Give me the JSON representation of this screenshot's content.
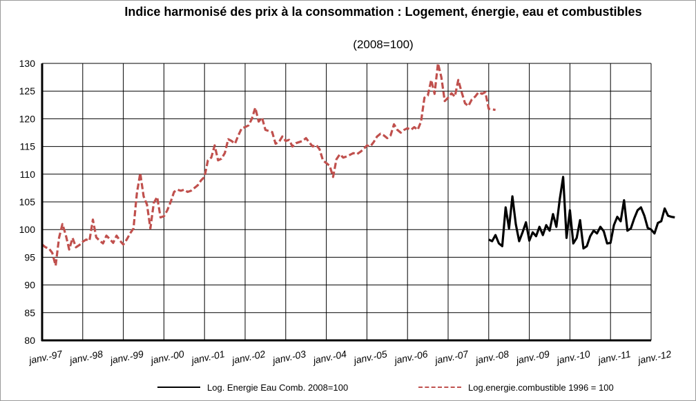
{
  "chart_data": {
    "type": "line",
    "title": "Indice harmonisé des prix à la consommation : Logement, énergie, eau  et combustibles",
    "subtitle": "(2008=100)",
    "xlabel": "",
    "ylabel": "",
    "ylim": [
      80,
      130
    ],
    "yticks": [
      "80",
      "85",
      "90",
      "95",
      "100",
      "105",
      "110",
      "115",
      "120",
      "125",
      "130"
    ],
    "xlim": [
      "1997-01",
      "2012-01"
    ],
    "xticks": [
      "janv.-97",
      "janv.-98",
      "janv.-99",
      "janv.-00",
      "janv.-01",
      "janv.-02",
      "janv.-03",
      "janv.-04",
      "janv.-05",
      "janv.-06",
      "janv.-07",
      "janv.-08",
      "janv.-09",
      "janv.-10",
      "janv.-11",
      "janv.-12"
    ],
    "grid": true,
    "legend_position": "bottom",
    "series": [
      {
        "name": "Log. Energie Eau Comb. 2008=100",
        "color": "#000000",
        "style": "solid",
        "points": [
          [
            "2008-01",
            98.2
          ],
          [
            "2008-02",
            97.9
          ],
          [
            "2008-03",
            99.0
          ],
          [
            "2008-04",
            97.5
          ],
          [
            "2008-05",
            97.0
          ],
          [
            "2008-06",
            104.0
          ],
          [
            "2008-07",
            100.2
          ],
          [
            "2008-08",
            106.0
          ],
          [
            "2008-09",
            101.0
          ],
          [
            "2008-10",
            97.9
          ],
          [
            "2008-11",
            99.5
          ],
          [
            "2008-12",
            101.3
          ],
          [
            "2009-01",
            98.0
          ],
          [
            "2009-02",
            99.5
          ],
          [
            "2009-03",
            98.8
          ],
          [
            "2009-04",
            100.5
          ],
          [
            "2009-05",
            99.0
          ],
          [
            "2009-06",
            100.8
          ],
          [
            "2009-07",
            99.8
          ],
          [
            "2009-08",
            102.8
          ],
          [
            "2009-09",
            100.5
          ],
          [
            "2009-10",
            105.5
          ],
          [
            "2009-11",
            109.5
          ],
          [
            "2009-12",
            98.5
          ],
          [
            "2010-01",
            103.5
          ],
          [
            "2010-02",
            97.5
          ],
          [
            "2010-03",
            98.5
          ],
          [
            "2010-04",
            101.7
          ],
          [
            "2010-05",
            96.6
          ],
          [
            "2010-06",
            97.0
          ],
          [
            "2010-07",
            98.8
          ],
          [
            "2010-08",
            99.8
          ],
          [
            "2010-09",
            99.3
          ],
          [
            "2010-10",
            100.5
          ],
          [
            "2010-11",
            99.7
          ],
          [
            "2010-12",
            97.5
          ],
          [
            "2011-01",
            97.6
          ],
          [
            "2011-02",
            100.8
          ],
          [
            "2011-03",
            102.3
          ],
          [
            "2011-04",
            101.5
          ],
          [
            "2011-05",
            105.3
          ],
          [
            "2011-06",
            99.8
          ],
          [
            "2011-07",
            100.2
          ],
          [
            "2011-08",
            102.0
          ],
          [
            "2011-09",
            103.5
          ],
          [
            "2011-10",
            104.0
          ],
          [
            "2011-11",
            102.5
          ],
          [
            "2011-12",
            100.3
          ],
          [
            "2012-01",
            100.0
          ],
          [
            "2012-02",
            99.3
          ],
          [
            "2012-03",
            101.2
          ],
          [
            "2012-04",
            101.5
          ],
          [
            "2012-05",
            103.8
          ],
          [
            "2012-06",
            102.5
          ],
          [
            "2012-07",
            102.3
          ],
          [
            "2012-08",
            102.2
          ]
        ]
      },
      {
        "name": "Log.energie.combustible 1996 = 100",
        "color": "#c0504d",
        "style": "dashed",
        "points": [
          [
            "1997-01",
            97.3
          ],
          [
            "1997-02",
            96.8
          ],
          [
            "1997-03",
            96.6
          ],
          [
            "1997-04",
            95.8
          ],
          [
            "1997-05",
            93.5
          ],
          [
            "1997-06",
            98.5
          ],
          [
            "1997-07",
            101.0
          ],
          [
            "1997-08",
            99.0
          ],
          [
            "1997-09",
            96.4
          ],
          [
            "1997-10",
            98.5
          ],
          [
            "1997-11",
            96.8
          ],
          [
            "1997-12",
            97.2
          ],
          [
            "1998-01",
            97.8
          ],
          [
            "1998-02",
            98.2
          ],
          [
            "1998-03",
            98.0
          ],
          [
            "1998-04",
            101.8
          ],
          [
            "1998-05",
            98.6
          ],
          [
            "1998-06",
            98.0
          ],
          [
            "1998-07",
            97.5
          ],
          [
            "1998-08",
            98.9
          ],
          [
            "1998-09",
            98.3
          ],
          [
            "1998-10",
            97.6
          ],
          [
            "1998-11",
            98.9
          ],
          [
            "1998-12",
            98.0
          ],
          [
            "1999-01",
            97.3
          ],
          [
            "1999-02",
            98.2
          ],
          [
            "1999-03",
            99.3
          ],
          [
            "1999-04",
            100.2
          ],
          [
            "1999-05",
            106.5
          ],
          [
            "1999-06",
            110.2
          ],
          [
            "1999-07",
            106.0
          ],
          [
            "1999-08",
            104.5
          ],
          [
            "1999-09",
            100.2
          ],
          [
            "1999-10",
            104.8
          ],
          [
            "1999-11",
            105.9
          ],
          [
            "1999-12",
            102.2
          ],
          [
            "2000-01",
            102.4
          ],
          [
            "2000-02",
            103.5
          ],
          [
            "2000-03",
            105.0
          ],
          [
            "2000-04",
            106.8
          ],
          [
            "2000-05",
            107.2
          ],
          [
            "2000-06",
            107.0
          ],
          [
            "2000-07",
            107.2
          ],
          [
            "2000-08",
            106.8
          ],
          [
            "2000-09",
            107.0
          ],
          [
            "2000-10",
            107.5
          ],
          [
            "2000-11",
            108.0
          ],
          [
            "2000-12",
            108.9
          ],
          [
            "2001-01",
            109.5
          ],
          [
            "2001-02",
            112.5
          ],
          [
            "2001-03",
            113.0
          ],
          [
            "2001-04",
            115.2
          ],
          [
            "2001-05",
            112.5
          ],
          [
            "2001-06",
            112.8
          ],
          [
            "2001-07",
            113.8
          ],
          [
            "2001-08",
            116.3
          ],
          [
            "2001-09",
            116.0
          ],
          [
            "2001-10",
            115.5
          ],
          [
            "2001-11",
            117.0
          ],
          [
            "2001-12",
            118.3
          ],
          [
            "2002-01",
            118.5
          ],
          [
            "2002-02",
            118.8
          ],
          [
            "2002-03",
            120.0
          ],
          [
            "2002-04",
            122.0
          ],
          [
            "2002-05",
            119.5
          ],
          [
            "2002-06",
            120.2
          ],
          [
            "2002-07",
            118.0
          ],
          [
            "2002-08",
            117.8
          ],
          [
            "2002-09",
            117.6
          ],
          [
            "2002-10",
            115.5
          ],
          [
            "2002-11",
            115.8
          ],
          [
            "2002-12",
            116.8
          ],
          [
            "2003-01",
            116.0
          ],
          [
            "2003-02",
            116.2
          ],
          [
            "2003-03",
            115.0
          ],
          [
            "2003-04",
            115.6
          ],
          [
            "2003-05",
            115.8
          ],
          [
            "2003-06",
            116.0
          ],
          [
            "2003-07",
            116.5
          ],
          [
            "2003-08",
            115.7
          ],
          [
            "2003-09",
            115.0
          ],
          [
            "2003-10",
            115.3
          ],
          [
            "2003-11",
            114.5
          ],
          [
            "2003-12",
            112.5
          ],
          [
            "2004-01",
            112.0
          ],
          [
            "2004-02",
            111.5
          ],
          [
            "2004-03",
            109.5
          ],
          [
            "2004-04",
            112.7
          ],
          [
            "2004-05",
            113.6
          ],
          [
            "2004-06",
            113.0
          ],
          [
            "2004-07",
            113.2
          ],
          [
            "2004-08",
            113.5
          ],
          [
            "2004-09",
            113.8
          ],
          [
            "2004-10",
            113.6
          ],
          [
            "2004-11",
            114.0
          ],
          [
            "2004-12",
            114.5
          ],
          [
            "2005-01",
            115.2
          ],
          [
            "2005-02",
            115.0
          ],
          [
            "2005-03",
            115.8
          ],
          [
            "2005-04",
            116.8
          ],
          [
            "2005-05",
            117.3
          ],
          [
            "2005-06",
            117.0
          ],
          [
            "2005-07",
            116.5
          ],
          [
            "2005-08",
            117.0
          ],
          [
            "2005-09",
            119.0
          ],
          [
            "2005-10",
            118.0
          ],
          [
            "2005-11",
            117.5
          ],
          [
            "2005-12",
            118.0
          ],
          [
            "2006-01",
            118.3
          ],
          [
            "2006-02",
            118.0
          ],
          [
            "2006-03",
            118.5
          ],
          [
            "2006-04",
            118.0
          ],
          [
            "2006-05",
            119.5
          ],
          [
            "2006-06",
            123.8
          ],
          [
            "2006-07",
            124.2
          ],
          [
            "2006-08",
            127.0
          ],
          [
            "2006-09",
            124.5
          ],
          [
            "2006-10",
            130.0
          ],
          [
            "2006-11",
            127.5
          ],
          [
            "2006-12",
            123.2
          ],
          [
            "2007-01",
            123.8
          ],
          [
            "2007-02",
            124.6
          ],
          [
            "2007-03",
            124.0
          ],
          [
            "2007-04",
            127.0
          ],
          [
            "2007-05",
            124.8
          ],
          [
            "2007-06",
            122.8
          ],
          [
            "2007-07",
            122.3
          ],
          [
            "2007-08",
            123.5
          ],
          [
            "2007-09",
            124.0
          ],
          [
            "2007-10",
            124.8
          ],
          [
            "2007-11",
            124.5
          ],
          [
            "2007-12",
            124.8
          ],
          [
            "2008-01",
            121.8
          ],
          [
            "2008-02",
            121.7
          ],
          [
            "2008-03",
            121.6
          ]
        ]
      }
    ]
  }
}
